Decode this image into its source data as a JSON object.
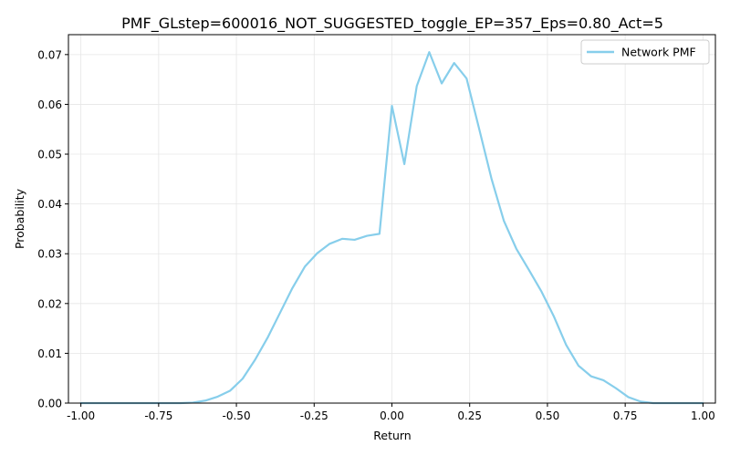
{
  "chart_data": {
    "type": "line",
    "title": "PMF_GLstep=600016_NOT_SUGGESTED_toggle_EP=357_Eps=0.80_Act=5",
    "xlabel": "Return",
    "ylabel": "Probability",
    "xlim": [
      -1.04,
      1.04
    ],
    "ylim": [
      0,
      0.074
    ],
    "xticks": [
      -1.0,
      -0.75,
      -0.5,
      -0.25,
      0.0,
      0.25,
      0.5,
      0.75,
      1.0
    ],
    "xtick_labels": [
      "-1.00",
      "-0.75",
      "-0.50",
      "-0.25",
      "0.00",
      "0.25",
      "0.50",
      "0.75",
      "1.00"
    ],
    "yticks": [
      0.0,
      0.01,
      0.02,
      0.03,
      0.04,
      0.05,
      0.06,
      0.07
    ],
    "ytick_labels": [
      "0.00",
      "0.01",
      "0.02",
      "0.03",
      "0.04",
      "0.05",
      "0.06",
      "0.07"
    ],
    "grid": true,
    "legend_position": "top-right",
    "series": [
      {
        "name": "Network PMF",
        "color": "#87CEEB",
        "x": [
          -1.0,
          -0.96,
          -0.92,
          -0.88,
          -0.84,
          -0.8,
          -0.76,
          -0.72,
          -0.68,
          -0.64,
          -0.6,
          -0.56,
          -0.52,
          -0.48,
          -0.44,
          -0.4,
          -0.36,
          -0.32,
          -0.28,
          -0.24,
          -0.2,
          -0.16,
          -0.12,
          -0.08,
          -0.04,
          0.0,
          0.04,
          0.08,
          0.12,
          0.16,
          0.2,
          0.24,
          0.28,
          0.32,
          0.36,
          0.4,
          0.44,
          0.48,
          0.52,
          0.56,
          0.6,
          0.64,
          0.68,
          0.72,
          0.76,
          0.8,
          0.84,
          0.88,
          0.92,
          0.96,
          1.0
        ],
        "y": [
          0.0,
          0.0,
          0.0,
          0.0,
          0.0,
          0.0,
          0.0,
          0.0,
          0.0,
          0.0001,
          0.0005,
          0.0013,
          0.0025,
          0.0049,
          0.0087,
          0.0131,
          0.0181,
          0.0231,
          0.0274,
          0.0301,
          0.032,
          0.033,
          0.0328,
          0.0336,
          0.034,
          0.0597,
          0.048,
          0.0637,
          0.0705,
          0.0642,
          0.0683,
          0.0652,
          0.0552,
          0.0451,
          0.0366,
          0.031,
          0.0268,
          0.0225,
          0.0175,
          0.0117,
          0.0075,
          0.0054,
          0.0046,
          0.003,
          0.0012,
          0.0003,
          0.0,
          0.0,
          0.0,
          0.0,
          0.0
        ]
      }
    ]
  }
}
